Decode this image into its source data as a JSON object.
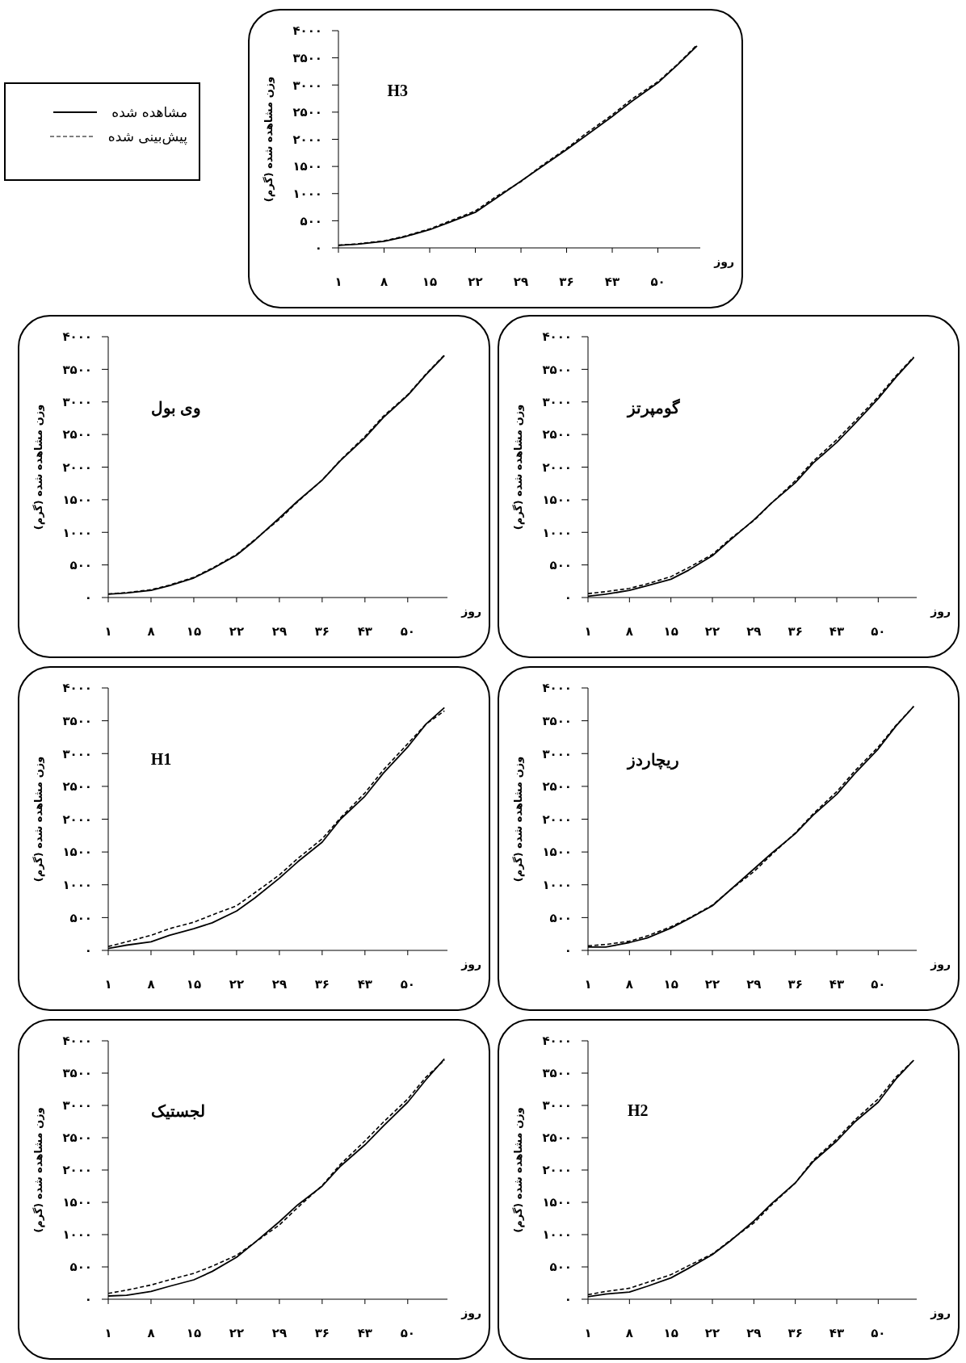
{
  "chart_data": [
    {
      "type": "line",
      "annotations": [
        "H3"
      ],
      "xlabel": "روز",
      "ylabel": "وزن مشاهده شده (گرم)",
      "legend": "left",
      "xlim": [
        1,
        56.5
      ],
      "ylim": [
        0,
        4000
      ],
      "xticks": [
        {
          "value": 1,
          "label": "۱"
        },
        {
          "value": 8,
          "label": "۸"
        },
        {
          "value": 15,
          "label": "۱۵"
        },
        {
          "value": 22,
          "label": "۲۲"
        },
        {
          "value": 29,
          "label": "۲۹"
        },
        {
          "value": 36,
          "label": "۳۶"
        },
        {
          "value": 43,
          "label": "۴۳"
        },
        {
          "value": 50,
          "label": "۵۰"
        }
      ],
      "yticks": [
        {
          "value": 0,
          "label": "۰"
        },
        {
          "value": 500,
          "label": "۵۰۰"
        },
        {
          "value": 1000,
          "label": "۱۰۰۰"
        },
        {
          "value": 1500,
          "label": "۱۵۰۰"
        },
        {
          "value": 2000,
          "label": "۲۰۰۰"
        },
        {
          "value": 2500,
          "label": "۲۵۰۰"
        },
        {
          "value": 3000,
          "label": "۳۰۰۰"
        },
        {
          "value": 3500,
          "label": "۳۵۰۰"
        },
        {
          "value": 4000,
          "label": "۴۰۰۰"
        }
      ],
      "x": [
        1,
        4,
        8,
        11,
        15,
        18,
        22,
        25,
        29,
        32,
        36,
        39,
        43,
        46,
        50,
        53,
        56
      ],
      "series": [
        {
          "name": "مشاهده شده",
          "color": "#000000",
          "line_style": "solid",
          "values": [
            46,
            70,
            120,
            200,
            335,
            470,
            655,
            900,
            1230,
            1480,
            1810,
            2070,
            2420,
            2700,
            3040,
            3370,
            3720
          ]
        },
        {
          "name": "پیش‌بینی شده",
          "color": "#000000",
          "line_style": "dashed",
          "values": [
            50,
            75,
            130,
            210,
            350,
            490,
            680,
            930,
            1220,
            1500,
            1830,
            2110,
            2450,
            2740,
            3060,
            3380,
            3740
          ]
        }
      ]
    },
    {
      "type": "line",
      "annotations": [
        "وی بول"
      ],
      "xlabel": "روز",
      "ylabel": "وزن مشاهده شده (گرم)",
      "xlim": [
        1,
        56.5
      ],
      "ylim": [
        0,
        4000
      ],
      "xticks": [
        {
          "value": 1,
          "label": "۱"
        },
        {
          "value": 8,
          "label": "۸"
        },
        {
          "value": 15,
          "label": "۱۵"
        },
        {
          "value": 22,
          "label": "۲۲"
        },
        {
          "value": 29,
          "label": "۲۹"
        },
        {
          "value": 36,
          "label": "۳۶"
        },
        {
          "value": 43,
          "label": "۴۳"
        },
        {
          "value": 50,
          "label": "۵۰"
        }
      ],
      "yticks": [
        {
          "value": 0,
          "label": "۰"
        },
        {
          "value": 500,
          "label": "۵۰۰"
        },
        {
          "value": 1000,
          "label": "۱۰۰۰"
        },
        {
          "value": 1500,
          "label": "۱۵۰۰"
        },
        {
          "value": 2000,
          "label": "۲۰۰۰"
        },
        {
          "value": 2500,
          "label": "۲۵۰۰"
        },
        {
          "value": 3000,
          "label": "۳۰۰۰"
        },
        {
          "value": 3500,
          "label": "۳۵۰۰"
        },
        {
          "value": 4000,
          "label": "۴۰۰۰"
        }
      ],
      "x": [
        1,
        4,
        8,
        11,
        15,
        18,
        22,
        25,
        29,
        32,
        36,
        39,
        43,
        46,
        50,
        53,
        56
      ],
      "series": [
        {
          "color": "#000000",
          "line_style": "solid",
          "values": [
            50,
            70,
            110,
            180,
            300,
            440,
            650,
            880,
            1220,
            1480,
            1800,
            2100,
            2450,
            2760,
            3100,
            3420,
            3710
          ]
        },
        {
          "color": "#000000",
          "line_style": "dashed",
          "values": [
            55,
            75,
            120,
            190,
            310,
            450,
            660,
            890,
            1200,
            1470,
            1800,
            2110,
            2470,
            2780,
            3110,
            3430,
            3720
          ]
        }
      ]
    },
    {
      "type": "line",
      "annotations": [
        "گومپرتز"
      ],
      "xlabel": "روز",
      "ylabel": "وزن مشاهده شده (گرم)",
      "xlim": [
        1,
        56.5
      ],
      "ylim": [
        0,
        4000
      ],
      "xticks": [
        {
          "value": 1,
          "label": "۱"
        },
        {
          "value": 8,
          "label": "۸"
        },
        {
          "value": 15,
          "label": "۱۵"
        },
        {
          "value": 22,
          "label": "۲۲"
        },
        {
          "value": 29,
          "label": "۲۹"
        },
        {
          "value": 36,
          "label": "۳۶"
        },
        {
          "value": 43,
          "label": "۴۳"
        },
        {
          "value": 50,
          "label": "۵۰"
        }
      ],
      "yticks": [
        {
          "value": 0,
          "label": "۰"
        },
        {
          "value": 500,
          "label": "۵۰۰"
        },
        {
          "value": 1000,
          "label": "۱۰۰۰"
        },
        {
          "value": 1500,
          "label": "۱۵۰۰"
        },
        {
          "value": 2000,
          "label": "۲۰۰۰"
        },
        {
          "value": 2500,
          "label": "۲۵۰۰"
        },
        {
          "value": 3000,
          "label": "۳۰۰۰"
        },
        {
          "value": 3500,
          "label": "۳۵۰۰"
        },
        {
          "value": 4000,
          "label": "۴۰۰۰"
        }
      ],
      "x": [
        1,
        4,
        8,
        11,
        15,
        18,
        22,
        25,
        29,
        32,
        36,
        39,
        43,
        46,
        50,
        53,
        56
      ],
      "series": [
        {
          "color": "#000000",
          "line_style": "solid",
          "values": [
            20,
            50,
            110,
            180,
            280,
            420,
            640,
            880,
            1190,
            1450,
            1760,
            2060,
            2380,
            2660,
            3050,
            3380,
            3680
          ]
        },
        {
          "color": "#000000",
          "line_style": "dashed",
          "values": [
            60,
            90,
            140,
            210,
            320,
            460,
            660,
            900,
            1180,
            1450,
            1790,
            2090,
            2420,
            2700,
            3080,
            3400,
            3690
          ]
        }
      ]
    },
    {
      "type": "line",
      "annotations": [
        "H1"
      ],
      "xlabel": "روز",
      "ylabel": "وزن مشاهده شده (گرم)",
      "xlim": [
        1,
        56.5
      ],
      "ylim": [
        0,
        4000
      ],
      "xticks": [
        {
          "value": 1,
          "label": "۱"
        },
        {
          "value": 8,
          "label": "۸"
        },
        {
          "value": 15,
          "label": "۱۵"
        },
        {
          "value": 22,
          "label": "۲۲"
        },
        {
          "value": 29,
          "label": "۲۹"
        },
        {
          "value": 36,
          "label": "۳۶"
        },
        {
          "value": 43,
          "label": "۴۳"
        },
        {
          "value": 50,
          "label": "۵۰"
        }
      ],
      "yticks": [
        {
          "value": 0,
          "label": "۰"
        },
        {
          "value": 500,
          "label": "۵۰۰"
        },
        {
          "value": 1000,
          "label": "۱۰۰۰"
        },
        {
          "value": 1500,
          "label": "۱۵۰۰"
        },
        {
          "value": 2000,
          "label": "۲۰۰۰"
        },
        {
          "value": 2500,
          "label": "۲۵۰۰"
        },
        {
          "value": 3000,
          "label": "۳۰۰۰"
        },
        {
          "value": 3500,
          "label": "۳۵۰۰"
        },
        {
          "value": 4000,
          "label": "۴۰۰۰"
        }
      ],
      "x": [
        1,
        4,
        8,
        11,
        15,
        18,
        22,
        25,
        29,
        32,
        36,
        39,
        43,
        46,
        50,
        53,
        56
      ],
      "series": [
        {
          "color": "#000000",
          "line_style": "solid",
          "values": [
            30,
            80,
            130,
            230,
            330,
            420,
            600,
            800,
            1100,
            1350,
            1650,
            2000,
            2350,
            2700,
            3100,
            3450,
            3700
          ]
        },
        {
          "color": "#000000",
          "line_style": "dashed",
          "values": [
            60,
            130,
            230,
            330,
            430,
            540,
            680,
            880,
            1150,
            1400,
            1700,
            2020,
            2400,
            2750,
            3150,
            3450,
            3650
          ]
        }
      ]
    },
    {
      "type": "line",
      "annotations": [
        "ریچاردز"
      ],
      "xlabel": "روز",
      "ylabel": "وزن مشاهده شده (گرم)",
      "xlim": [
        1,
        56.5
      ],
      "ylim": [
        0,
        4000
      ],
      "xticks": [
        {
          "value": 1,
          "label": "۱"
        },
        {
          "value": 8,
          "label": "۸"
        },
        {
          "value": 15,
          "label": "۱۵"
        },
        {
          "value": 22,
          "label": "۲۲"
        },
        {
          "value": 29,
          "label": "۲۹"
        },
        {
          "value": 36,
          "label": "۳۶"
        },
        {
          "value": 43,
          "label": "۴۳"
        },
        {
          "value": 50,
          "label": "۵۰"
        }
      ],
      "yticks": [
        {
          "value": 0,
          "label": "۰"
        },
        {
          "value": 500,
          "label": "۵۰۰"
        },
        {
          "value": 1000,
          "label": "۱۰۰۰"
        },
        {
          "value": 1500,
          "label": "۱۵۰۰"
        },
        {
          "value": 2000,
          "label": "۲۰۰۰"
        },
        {
          "value": 2500,
          "label": "۲۵۰۰"
        },
        {
          "value": 3000,
          "label": "۳۰۰۰"
        },
        {
          "value": 3500,
          "label": "۳۵۰۰"
        },
        {
          "value": 4000,
          "label": "۴۰۰۰"
        }
      ],
      "x": [
        1,
        4,
        8,
        11,
        15,
        18,
        22,
        25,
        29,
        32,
        36,
        39,
        43,
        46,
        50,
        53,
        56
      ],
      "series": [
        {
          "color": "#000000",
          "line_style": "solid",
          "values": [
            50,
            50,
            120,
            190,
            340,
            480,
            680,
            920,
            1240,
            1480,
            1780,
            2060,
            2380,
            2690,
            3070,
            3420,
            3720
          ]
        },
        {
          "color": "#000000",
          "line_style": "dashed",
          "values": [
            70,
            90,
            140,
            220,
            360,
            490,
            690,
            920,
            1200,
            1460,
            1790,
            2080,
            2420,
            2730,
            3100,
            3430,
            3720
          ]
        }
      ]
    },
    {
      "type": "line",
      "annotations": [
        "لجستیک"
      ],
      "xlabel": "روز",
      "ylabel": "وزن مشاهده شده (گرم)",
      "xlim": [
        1,
        56.5
      ],
      "ylim": [
        0,
        4000
      ],
      "xticks": [
        {
          "value": 1,
          "label": "۱"
        },
        {
          "value": 8,
          "label": "۸"
        },
        {
          "value": 15,
          "label": "۱۵"
        },
        {
          "value": 22,
          "label": "۲۲"
        },
        {
          "value": 29,
          "label": "۲۹"
        },
        {
          "value": 36,
          "label": "۳۶"
        },
        {
          "value": 43,
          "label": "۴۳"
        },
        {
          "value": 50,
          "label": "۵۰"
        }
      ],
      "yticks": [
        {
          "value": 0,
          "label": "۰"
        },
        {
          "value": 500,
          "label": "۵۰۰"
        },
        {
          "value": 1000,
          "label": "۱۰۰۰"
        },
        {
          "value": 1500,
          "label": "۱۵۰۰"
        },
        {
          "value": 2000,
          "label": "۲۰۰۰"
        },
        {
          "value": 2500,
          "label": "۲۵۰۰"
        },
        {
          "value": 3000,
          "label": "۳۰۰۰"
        },
        {
          "value": 3500,
          "label": "۳۵۰۰"
        },
        {
          "value": 4000,
          "label": "۴۰۰۰"
        }
      ],
      "x": [
        1,
        4,
        8,
        11,
        15,
        18,
        22,
        25,
        29,
        32,
        36,
        39,
        43,
        46,
        50,
        53,
        56
      ],
      "series": [
        {
          "color": "#000000",
          "line_style": "solid",
          "values": [
            50,
            60,
            120,
            200,
            300,
            430,
            650,
            880,
            1200,
            1460,
            1750,
            2060,
            2390,
            2680,
            3050,
            3400,
            3720
          ]
        },
        {
          "color": "#000000",
          "line_style": "dashed",
          "values": [
            90,
            140,
            220,
            300,
            400,
            510,
            680,
            880,
            1150,
            1420,
            1760,
            2090,
            2450,
            2740,
            3100,
            3440,
            3700
          ]
        }
      ]
    },
    {
      "type": "line",
      "annotations": [
        "H2"
      ],
      "xlabel": "روز",
      "ylabel": "وزن مشاهده شده (گرم)",
      "xlim": [
        1,
        56.5
      ],
      "ylim": [
        0,
        4000
      ],
      "xticks": [
        {
          "value": 1,
          "label": "۱"
        },
        {
          "value": 8,
          "label": "۸"
        },
        {
          "value": 15,
          "label": "۱۵"
        },
        {
          "value": 22,
          "label": "۲۲"
        },
        {
          "value": 29,
          "label": "۲۹"
        },
        {
          "value": 36,
          "label": "۳۶"
        },
        {
          "value": 43,
          "label": "۴۳"
        },
        {
          "value": 50,
          "label": "۵۰"
        }
      ],
      "yticks": [
        {
          "value": 0,
          "label": "۰"
        },
        {
          "value": 500,
          "label": "۵۰۰"
        },
        {
          "value": 1000,
          "label": "۱۰۰۰"
        },
        {
          "value": 1500,
          "label": "۱۵۰۰"
        },
        {
          "value": 2000,
          "label": "۲۰۰۰"
        },
        {
          "value": 2500,
          "label": "۲۵۰۰"
        },
        {
          "value": 3000,
          "label": "۳۰۰۰"
        },
        {
          "value": 3500,
          "label": "۳۵۰۰"
        },
        {
          "value": 4000,
          "label": "۴۰۰۰"
        }
      ],
      "x": [
        1,
        4,
        8,
        11,
        15,
        18,
        22,
        25,
        29,
        32,
        36,
        39,
        43,
        46,
        50,
        53,
        56
      ],
      "series": [
        {
          "color": "#000000",
          "line_style": "solid",
          "values": [
            40,
            80,
            110,
            200,
            330,
            480,
            690,
            900,
            1210,
            1480,
            1800,
            2130,
            2450,
            2740,
            3050,
            3410,
            3700
          ]
        },
        {
          "color": "#000000",
          "line_style": "dashed",
          "values": [
            70,
            120,
            170,
            260,
            380,
            520,
            700,
            910,
            1180,
            1460,
            1800,
            2150,
            2480,
            2770,
            3100,
            3440,
            3700
          ]
        }
      ]
    }
  ]
}
